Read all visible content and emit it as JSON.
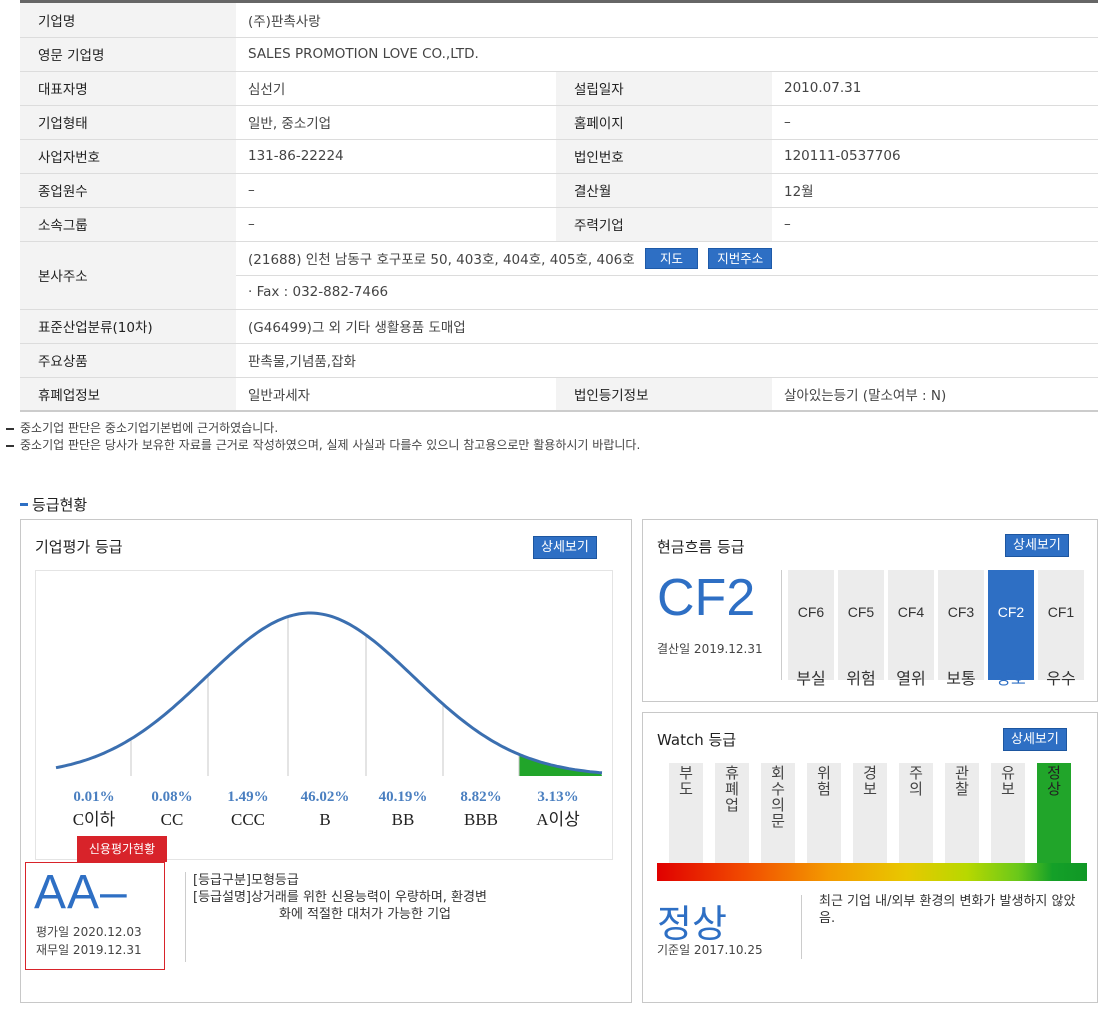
{
  "company": {
    "name_label": "기업명",
    "name": "(주)판촉사랑",
    "eng_name_label": "영문 기업명",
    "eng_name": "SALES PROMOTION LOVE CO.,LTD.",
    "ceo_label": "대표자명",
    "ceo": "심선기",
    "founded_label": "설립일자",
    "founded": "2010.07.31",
    "type_label": "기업형태",
    "type": "일반, 중소기업",
    "homepage_label": "홈페이지",
    "homepage": "–",
    "bizno_label": "사업자번호",
    "bizno": "131-86-22224",
    "corpno_label": "법인번호",
    "corpno": "120111-0537706",
    "employees_label": "종업원수",
    "employees": "–",
    "settle_label": "결산월",
    "settle": "12월",
    "group_label": "소속그룹",
    "group": "–",
    "main_corp_label": "주력기업",
    "main_corp": "–",
    "address_label": "본사주소",
    "address": "(21688) 인천 남동구 호구포로 50, 403호, 404호, 405호, 406호",
    "map_btn": "지도",
    "jibun_btn": "지번주소",
    "fax": "· Fax : 032-882-7466",
    "industry_label": "표준산업분류(10차)",
    "industry": "(G46499)그 외 기타 생활용품 도매업",
    "products_label": "주요상품",
    "products": "판촉물,기념품,잡화",
    "closure_label": "휴폐업정보",
    "closure": "일반과세자",
    "registry_label": "법인등기정보",
    "registry": "살아있는등기 (말소여부 : N)"
  },
  "notes": [
    "중소기업 판단은 중소기업기본법에 근거하였습니다.",
    "중소기업 판단은 당사가 보유한 자료를 근거로 작성하였으며, 실제 사실과 다를수 있으니 참고용으로만 활용하시기 바랍니다."
  ],
  "section_title": "등급현황",
  "eval": {
    "title": "기업평가 등급",
    "detail_btn": "상세보기",
    "distribution": [
      {
        "pct": "0.01%",
        "grade": "C이하"
      },
      {
        "pct": "0.08%",
        "grade": "CC"
      },
      {
        "pct": "1.49%",
        "grade": "CCC"
      },
      {
        "pct": "46.02%",
        "grade": "B"
      },
      {
        "pct": "40.19%",
        "grade": "BB"
      },
      {
        "pct": "8.82%",
        "grade": "BBB"
      },
      {
        "pct": "3.13%",
        "grade": "A이상"
      }
    ],
    "highlight_color": "#21a52a",
    "credit_tag": "신용평가현황",
    "grade": "AA–",
    "eval_date": "평가일 2020.12.03",
    "fin_date": "재무일 2019.12.31",
    "desc_line1": "[등급구분]모형등급",
    "desc_line2": "[등급설명]상거래를 위한 신용능력이 우량하며, 환경변",
    "desc_line3": "화에 적절한 대처가 가능한 기업"
  },
  "cashflow": {
    "title": "현금흐름 등급",
    "detail_btn": "상세보기",
    "grade": "CF2",
    "date": "결산일 2019.12.31",
    "cells": [
      {
        "name": "CF6",
        "label": "부실"
      },
      {
        "name": "CF5",
        "label": "위험"
      },
      {
        "name": "CF4",
        "label": "열위"
      },
      {
        "name": "CF3",
        "label": "보통"
      },
      {
        "name": "CF2",
        "label": "양호"
      },
      {
        "name": "CF1",
        "label": "우수"
      }
    ],
    "active_index": 4,
    "accent": "#2e6fc4"
  },
  "watch": {
    "title": "Watch 등급",
    "detail_btn": "상세보기",
    "columns": [
      "부도",
      "휴폐업",
      "회수의문",
      "위험",
      "경보",
      "주의",
      "관찰",
      "유보",
      "정상"
    ],
    "active_index": 8,
    "grade": "정상",
    "date": "기준일 2017.10.25",
    "desc": "최근 기업 내/외부 환경의 변화가 발생하지 않았음."
  }
}
